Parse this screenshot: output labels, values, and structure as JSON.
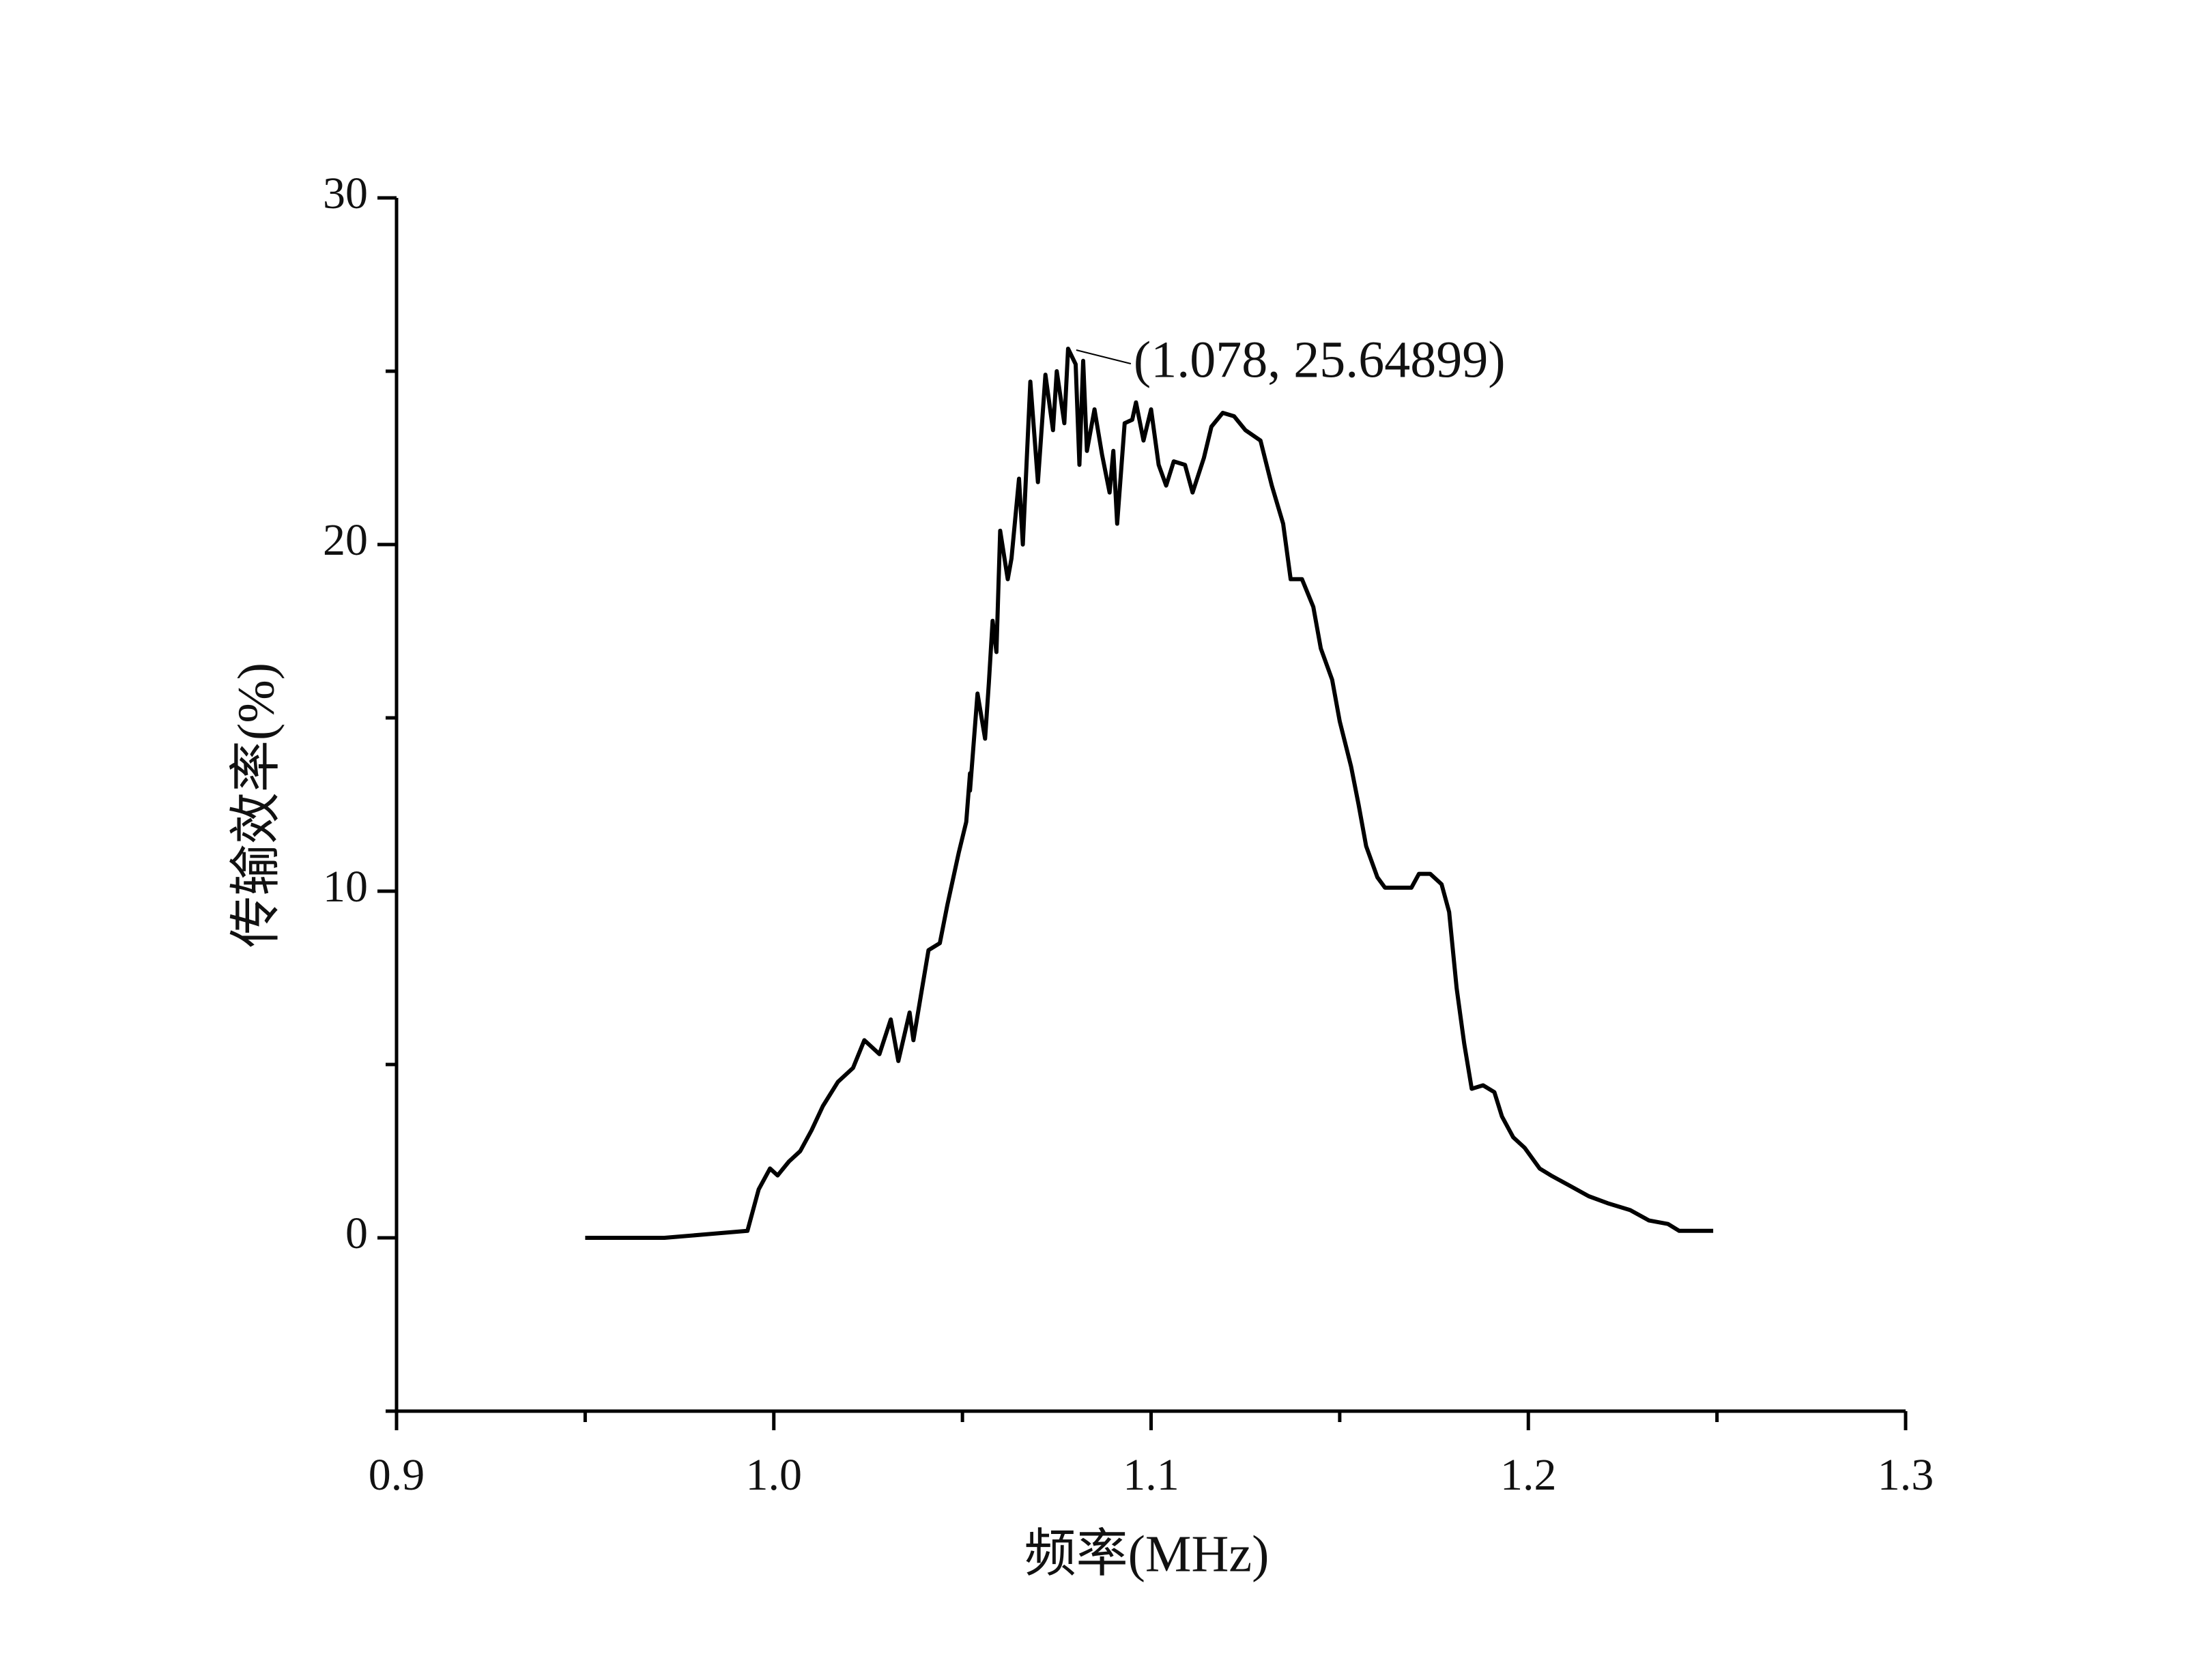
{
  "chart_data": {
    "type": "line",
    "x_label": "频率(MHz)",
    "y_label": "传输效率(%)",
    "xlim": [
      0.9,
      1.3
    ],
    "ylim": [
      -5,
      30
    ],
    "xticks": [
      0.9,
      {
        "value": 1,
        "label": "1.0"
      },
      1.1,
      1.2,
      1.3
    ],
    "yticks": [
      0,
      10,
      20,
      30
    ],
    "xminorticks": [
      0.95,
      1.05,
      1.15,
      1.25
    ],
    "yminorticks": [
      -5,
      5,
      15,
      25
    ],
    "annotation": {
      "text": "(1.078, 25.64899)",
      "x": 1.078,
      "y": 25.64899
    },
    "series": [
      {
        "color": "#000000",
        "x": [
          0.95,
          0.971,
          0.982,
          0.993,
          0.996,
          0.999,
          1.001,
          1.004,
          1.007,
          1.01,
          1.013,
          1.017,
          1.021,
          1.024,
          1.028,
          1.031,
          1.033,
          1.036,
          1.037,
          1.039,
          1.041,
          1.044,
          1.046,
          1.049,
          1.051,
          1.052,
          1.052,
          1.054,
          1.056,
          1.057,
          1.058,
          1.059,
          1.06,
          1.062,
          1.063,
          1.065,
          1.066,
          1.068,
          1.07,
          1.072,
          1.074,
          1.075,
          1.077,
          1.078,
          1.08,
          1.081,
          1.082,
          1.083,
          1.085,
          1.087,
          1.089,
          1.09,
          1.091,
          1.093,
          1.095,
          1.096,
          1.098,
          1.1,
          1.102,
          1.104,
          1.106,
          1.109,
          1.111,
          1.114,
          1.116,
          1.119,
          1.122,
          1.125,
          1.129,
          1.132,
          1.135,
          1.137,
          1.14,
          1.143,
          1.145,
          1.148,
          1.15,
          1.153,
          1.155,
          1.157,
          1.16,
          1.162,
          1.165,
          1.169,
          1.171,
          1.174,
          1.177,
          1.179,
          1.181,
          1.183,
          1.185,
          1.188,
          1.191,
          1.193,
          1.196,
          1.199,
          1.203,
          1.206,
          1.211,
          1.216,
          1.221,
          1.227,
          1.232,
          1.237,
          1.24,
          1.249
        ],
        "values": [
          0,
          0,
          0.1,
          0.2,
          1.4,
          2.0,
          1.8,
          2.2,
          2.5,
          3.1,
          3.8,
          4.5,
          4.9,
          5.7,
          5.3,
          6.3,
          5.1,
          6.5,
          5.7,
          7.0,
          8.3,
          8.5,
          9.6,
          11.1,
          12.0,
          13.4,
          12.9,
          15.7,
          14.4,
          16.0,
          17.8,
          16.9,
          20.4,
          19.0,
          19.6,
          21.9,
          20.0,
          24.7,
          21.8,
          24.9,
          23.3,
          25.0,
          23.5,
          25.64899,
          25.2,
          22.3,
          25.3,
          22.7,
          23.9,
          22.6,
          21.5,
          22.7,
          20.6,
          23.5,
          23.6,
          24.1,
          23.0,
          23.9,
          22.3,
          21.7,
          22.4,
          22.3,
          21.5,
          22.5,
          23.4,
          23.8,
          23.7,
          23.3,
          23.0,
          21.7,
          20.6,
          19.0,
          19.0,
          18.2,
          17.0,
          16.1,
          14.9,
          13.6,
          12.5,
          11.3,
          10.4,
          10.1,
          10.1,
          10.1,
          10.5,
          10.5,
          10.2,
          9.4,
          7.2,
          5.6,
          4.3,
          4.4,
          4.2,
          3.5,
          2.9,
          2.6,
          2.0,
          1.8,
          1.5,
          1.2,
          1.0,
          0.8,
          0.5,
          0.4,
          0.2,
          0.2
        ]
      }
    ]
  }
}
